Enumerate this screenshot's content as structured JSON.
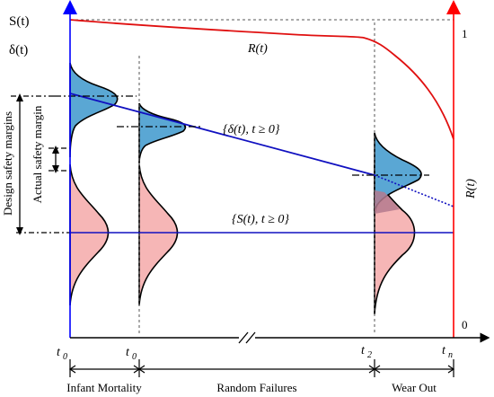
{
  "axes": {
    "left_top_label": "S(t)",
    "left_second_label": "δ(t)",
    "right_top_tick": "1",
    "right_bottom_tick": "0",
    "right_axis_label": "R(t)"
  },
  "curves": {
    "reliability_label": "R(t)",
    "strength_set_label": "{δ(t), t ≥ 0}",
    "stress_set_label": "{S(t), t ≥ 0}"
  },
  "margins": {
    "design": "Design safety margins",
    "actual": "Actual safety margin"
  },
  "time_ticks": [
    {
      "base": "t",
      "sub": "0"
    },
    {
      "base": "t",
      "sub": "0"
    },
    {
      "base": "t",
      "sub": "2"
    },
    {
      "base": "t",
      "sub": "n"
    }
  ],
  "phases": [
    "Infant Mortality",
    "Random Failures",
    "Wear Out"
  ],
  "colors": {
    "strength_fill": "#5aa7d4",
    "stress_fill": "#f6b6b6",
    "blue_line": "#1010c0",
    "red_line": "#e01010",
    "left_axis": "#0000ff",
    "right_axis": "#ff0000"
  }
}
